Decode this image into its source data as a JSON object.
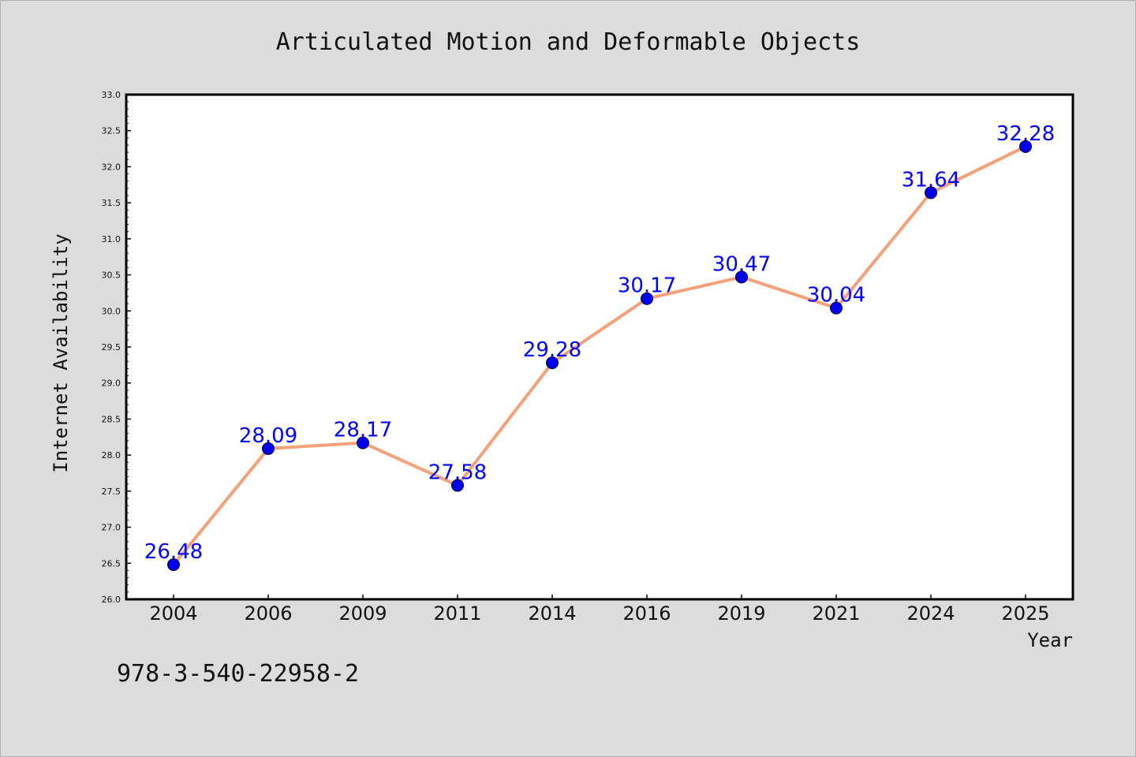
{
  "chart_data": {
    "type": "line",
    "title": "Articulated Motion and Deformable Objects",
    "xlabel": "Year",
    "ylabel": "Internet Availability",
    "categories": [
      "2004",
      "2006",
      "2009",
      "2011",
      "2014",
      "2016",
      "2019",
      "2021",
      "2024",
      "2025"
    ],
    "series": [
      {
        "values": [
          26.48,
          28.09,
          28.17,
          27.58,
          29.28,
          30.17,
          30.47,
          30.04,
          31.64,
          32.28
        ],
        "data_labels": [
          "26.48",
          "28.09",
          "28.17",
          "27.58",
          "29.28",
          "30.17",
          "30.47",
          "30.04",
          "31.64",
          "32.28"
        ],
        "line_color": "#f4a07a",
        "marker_color": "#0000ee"
      }
    ],
    "ylim": [
      26.0,
      33.0
    ],
    "yticks": [
      "26.0",
      "26.5",
      "27.0",
      "27.5",
      "28.0",
      "28.5",
      "29.0",
      "29.5",
      "30.0",
      "30.5",
      "31.0",
      "31.5",
      "32.0",
      "32.5",
      "33.0"
    ],
    "grid": false,
    "legend": "none",
    "data_label_color": "#0000ff"
  },
  "footnote": "978-3-540-22958-2",
  "colors": {
    "background": "#dcdcdc",
    "plot_background": "#ffffff",
    "axis": "#000000"
  }
}
